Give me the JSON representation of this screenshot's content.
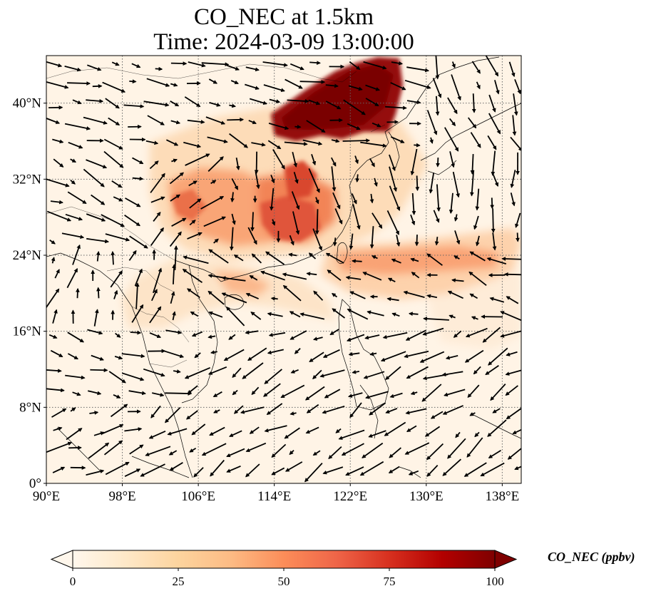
{
  "title_line1": "CO_NEC at 1.5km",
  "title_line2": "Time: 2024-03-09 13:00:00",
  "map": {
    "lon_range": [
      90,
      140
    ],
    "lat_range": [
      0,
      45
    ],
    "lon_ticks": [
      {
        "value": 90,
        "label": "90°E"
      },
      {
        "value": 98,
        "label": "98°E"
      },
      {
        "value": 106,
        "label": "106°E"
      },
      {
        "value": 114,
        "label": "114°E"
      },
      {
        "value": 122,
        "label": "122°E"
      },
      {
        "value": 130,
        "label": "130°E"
      },
      {
        "value": 138,
        "label": "138°E"
      }
    ],
    "lat_ticks": [
      {
        "value": 0,
        "label": "0°"
      },
      {
        "value": 8,
        "label": "8°N"
      },
      {
        "value": 16,
        "label": "16°N"
      },
      {
        "value": 24,
        "label": "24°N"
      },
      {
        "value": 32,
        "label": "32°N"
      },
      {
        "value": 40,
        "label": "40°N"
      }
    ],
    "grid": true
  },
  "colorbar": {
    "label": "CO_NEC (ppbv)",
    "min": 0,
    "max": 100,
    "extend": "both",
    "ticks": [
      {
        "value": 0,
        "label": "0"
      },
      {
        "value": 25,
        "label": "25"
      },
      {
        "value": 50,
        "label": "50"
      },
      {
        "value": 75,
        "label": "75"
      },
      {
        "value": 100,
        "label": "100"
      }
    ],
    "colormap": [
      "#fff7ec",
      "#fee8c8",
      "#fdd49e",
      "#fdbb84",
      "#fc8d59",
      "#ef6548",
      "#d7301f",
      "#b30000",
      "#7f0000"
    ]
  }
}
